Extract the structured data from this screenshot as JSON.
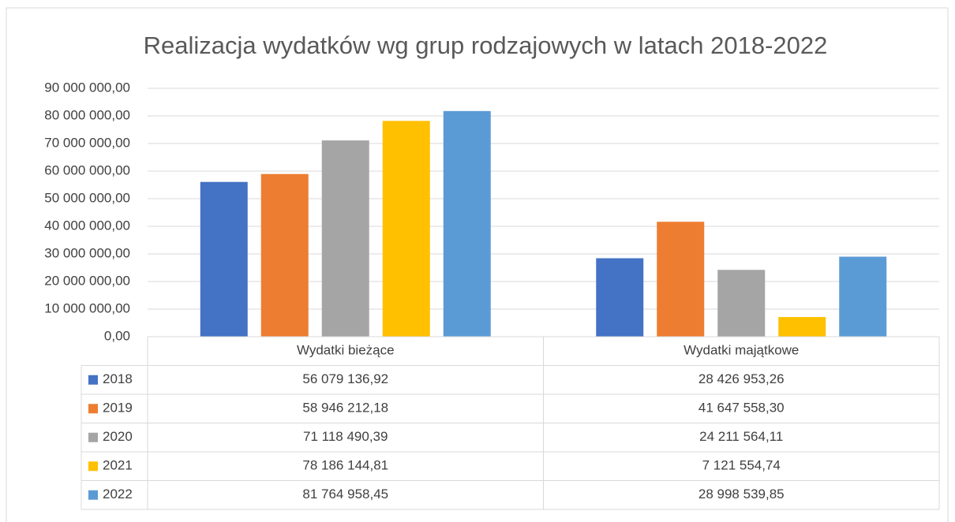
{
  "chart_data": {
    "type": "bar",
    "title": "Realizacja wydatków wg grup rodzajowych w latach 2018-2022",
    "categories": [
      "Wydatki bieżące",
      "Wydatki majątkowe"
    ],
    "series": [
      {
        "name": "2018",
        "color": "#4472c4",
        "values": [
          56079136.92,
          28426953.26
        ],
        "value_labels": [
          "56 079 136,92",
          "28 426 953,26"
        ]
      },
      {
        "name": "2019",
        "color": "#ed7d31",
        "values": [
          58946212.18,
          41647558.3
        ],
        "value_labels": [
          "58 946 212,18",
          "41 647 558,30"
        ]
      },
      {
        "name": "2020",
        "color": "#a5a5a5",
        "values": [
          71118490.39,
          24211564.11
        ],
        "value_labels": [
          "71 118 490,39",
          "24 211 564,11"
        ]
      },
      {
        "name": "2021",
        "color": "#ffc000",
        "values": [
          78186144.81,
          7121554.74
        ],
        "value_labels": [
          "78 186 144,81",
          "7 121 554,74"
        ]
      },
      {
        "name": "2022",
        "color": "#5b9bd5",
        "values": [
          81764958.45,
          28998539.85
        ],
        "value_labels": [
          "81 764 958,45",
          "28 998 539,85"
        ]
      }
    ],
    "ylim": [
      0,
      90000000
    ],
    "yticks": [
      {
        "value": 0,
        "label": "0,00"
      },
      {
        "value": 10000000,
        "label": "10 000 000,00"
      },
      {
        "value": 20000000,
        "label": "20 000 000,00"
      },
      {
        "value": 30000000,
        "label": "30 000 000,00"
      },
      {
        "value": 40000000,
        "label": "40 000 000,00"
      },
      {
        "value": 50000000,
        "label": "50 000 000,00"
      },
      {
        "value": 60000000,
        "label": "60 000 000,00"
      },
      {
        "value": 70000000,
        "label": "70 000 000,00"
      },
      {
        "value": 80000000,
        "label": "80 000 000,00"
      },
      {
        "value": 90000000,
        "label": "90 000 000,00"
      }
    ],
    "grid": true
  }
}
